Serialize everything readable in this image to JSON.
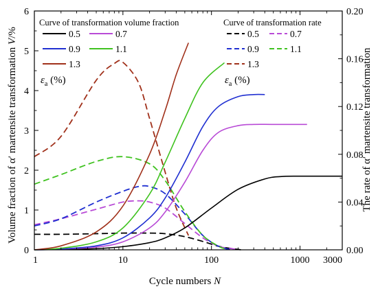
{
  "chart_data": {
    "type": "line",
    "xlabel_main": "Cycle numbers ",
    "xlabel_symbol": "N",
    "ylabel_left_main": "Volume fraction of α′ martensite transformation ",
    "ylabel_left_symbol": "V",
    "ylabel_left_unit": "/%",
    "ylabel_right": "The rate of α′ martensite transformation",
    "x_scale": "log",
    "xlim": [
      1,
      3000
    ],
    "x_ticks": [
      1,
      10,
      100,
      1000,
      3000
    ],
    "x_tick_labels": [
      "1",
      "10",
      "100",
      "1000",
      "3000"
    ],
    "ylim_left": [
      0,
      6
    ],
    "y_left_ticks": [
      0,
      1,
      2,
      3,
      4,
      5,
      6
    ],
    "y_left_tick_labels": [
      "0",
      "1",
      "2",
      "3",
      "4",
      "5",
      "6"
    ],
    "ylim_right": [
      0,
      0.2
    ],
    "y_right_ticks": [
      0,
      0.04,
      0.08,
      0.12,
      0.16,
      0.2
    ],
    "y_right_tick_labels": [
      "0.00",
      "0.04",
      "0.08",
      "0.12",
      "0.16",
      "0.20"
    ],
    "grid": false,
    "legend_left": {
      "title": "Curve of transformation volume fraction",
      "axis_symbol": "ε",
      "axis_subscript": "a",
      "axis_unit": " (%)",
      "entries": [
        "0.5",
        "0.7",
        "0.9",
        "1.1",
        "1.3"
      ]
    },
    "legend_right": {
      "title": "Curve of transformation rate",
      "axis_symbol": "ε",
      "axis_subscript": "a",
      "axis_unit": " (%)",
      "entries": [
        "0.5",
        "0.7",
        "0.9",
        "1.1",
        "1.3"
      ]
    },
    "colors": {
      "0.5": "#000000",
      "0.7": "#b84ad6",
      "0.9": "#1f2fd1",
      "1.1": "#3fc21f",
      "1.3": "#a0301a"
    },
    "series": [
      {
        "name": "0.5",
        "kind": "volume_fraction",
        "axis": "left",
        "style": "solid",
        "x": [
          1,
          2,
          5,
          10,
          20,
          30,
          50,
          100,
          200,
          400,
          600,
          1000,
          3000
        ],
        "y": [
          0.0,
          0.01,
          0.03,
          0.08,
          0.18,
          0.3,
          0.55,
          1.05,
          1.52,
          1.78,
          1.84,
          1.85,
          1.85
        ]
      },
      {
        "name": "0.7",
        "kind": "volume_fraction",
        "axis": "left",
        "style": "solid",
        "x": [
          1,
          2,
          5,
          10,
          20,
          30,
          50,
          80,
          120,
          200,
          300,
          500,
          1200
        ],
        "y": [
          0.0,
          0.02,
          0.07,
          0.2,
          0.55,
          0.95,
          1.7,
          2.5,
          2.95,
          3.12,
          3.15,
          3.15,
          3.15
        ]
      },
      {
        "name": "0.9",
        "kind": "volume_fraction",
        "axis": "left",
        "style": "solid",
        "x": [
          1,
          2,
          5,
          10,
          20,
          30,
          50,
          80,
          120,
          200,
          300,
          400
        ],
        "y": [
          0.0,
          0.02,
          0.1,
          0.3,
          0.8,
          1.3,
          2.2,
          3.1,
          3.6,
          3.85,
          3.9,
          3.9
        ]
      },
      {
        "name": "1.1",
        "kind": "volume_fraction",
        "axis": "left",
        "style": "solid",
        "x": [
          1,
          2,
          5,
          10,
          20,
          30,
          50,
          80,
          140
        ],
        "y": [
          0.0,
          0.04,
          0.2,
          0.55,
          1.4,
          2.2,
          3.3,
          4.2,
          4.7
        ]
      },
      {
        "name": "1.3",
        "kind": "volume_fraction",
        "axis": "left",
        "style": "solid",
        "x": [
          1,
          2,
          5,
          10,
          20,
          30,
          40,
          55
        ],
        "y": [
          0.0,
          0.1,
          0.45,
          1.1,
          2.4,
          3.5,
          4.4,
          5.2
        ]
      },
      {
        "name": "0.5",
        "kind": "transformation_rate",
        "axis": "right",
        "style": "dashed",
        "x": [
          1,
          2,
          5,
          10,
          20,
          30,
          50,
          80,
          120,
          170,
          220
        ],
        "y": [
          0.013,
          0.013,
          0.0135,
          0.014,
          0.014,
          0.0135,
          0.011,
          0.007,
          0.003,
          0.001,
          0.0
        ]
      },
      {
        "name": "0.7",
        "kind": "transformation_rate",
        "axis": "right",
        "style": "dashed",
        "x": [
          1,
          2,
          5,
          10,
          15,
          20,
          30,
          50,
          80,
          120,
          170,
          200
        ],
        "y": [
          0.021,
          0.026,
          0.034,
          0.04,
          0.041,
          0.04,
          0.035,
          0.022,
          0.01,
          0.003,
          0.001,
          0.0
        ]
      },
      {
        "name": "0.9",
        "kind": "transformation_rate",
        "axis": "right",
        "style": "dashed",
        "x": [
          1,
          2,
          5,
          10,
          15,
          20,
          30,
          50,
          80,
          120,
          170
        ],
        "y": [
          0.02,
          0.026,
          0.04,
          0.049,
          0.053,
          0.053,
          0.047,
          0.03,
          0.012,
          0.003,
          0.0
        ]
      },
      {
        "name": "1.1",
        "kind": "transformation_rate",
        "axis": "right",
        "style": "dashed",
        "x": [
          1,
          2,
          5,
          10,
          20,
          30,
          50,
          80,
          120,
          140
        ],
        "y": [
          0.055,
          0.063,
          0.074,
          0.078,
          0.072,
          0.058,
          0.032,
          0.012,
          0.003,
          0.001
        ]
      },
      {
        "name": "1.3",
        "kind": "transformation_rate",
        "axis": "right",
        "style": "dashed",
        "x": [
          1,
          2,
          5,
          8,
          10,
          15,
          20,
          30,
          40,
          55
        ],
        "y": [
          0.078,
          0.095,
          0.142,
          0.156,
          0.157,
          0.14,
          0.11,
          0.065,
          0.035,
          0.012
        ]
      }
    ]
  }
}
